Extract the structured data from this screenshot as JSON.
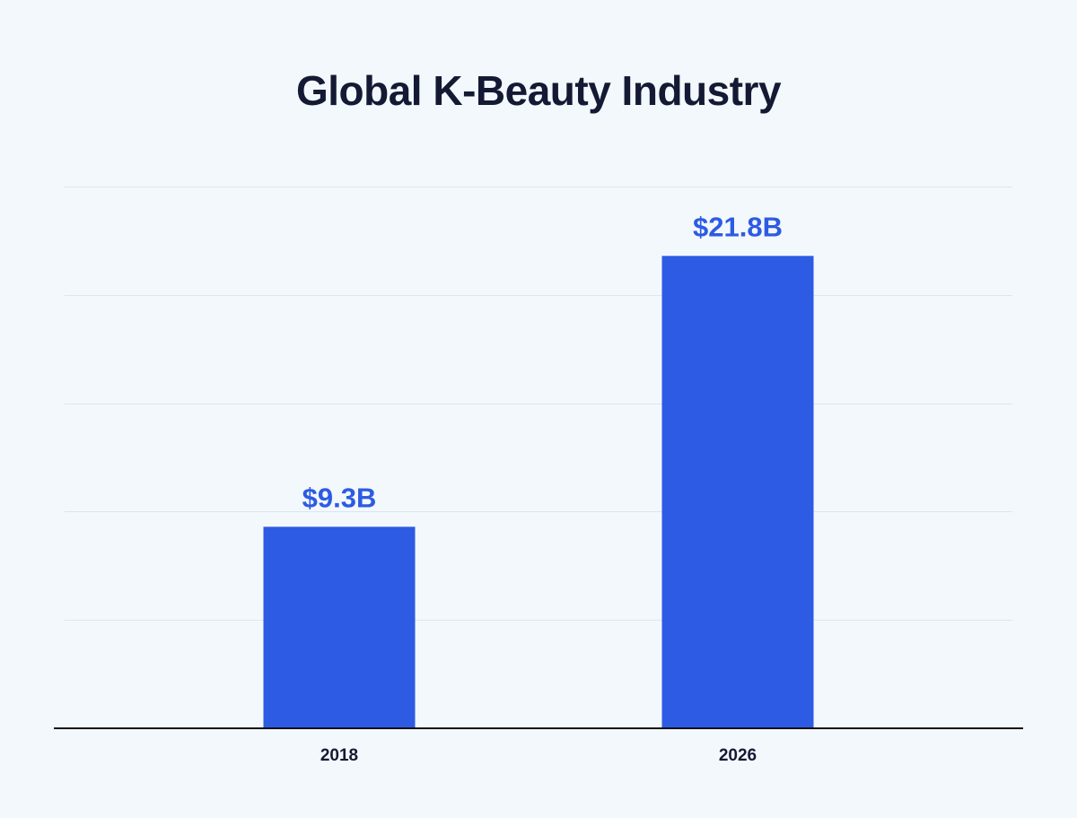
{
  "chart_data": {
    "type": "bar",
    "title": "Global K-Beauty Industry",
    "categories": [
      "2018",
      "2026"
    ],
    "values": [
      9.3,
      21.8
    ],
    "value_labels": [
      "$9.3B",
      "$21.8B"
    ],
    "ylim": [
      0,
      25
    ],
    "grid": true,
    "legend": "none",
    "colors": {
      "bar": "#2d5be3",
      "label": "#2d5be3",
      "title": "#141a33",
      "background": "#f3f8fd"
    }
  }
}
